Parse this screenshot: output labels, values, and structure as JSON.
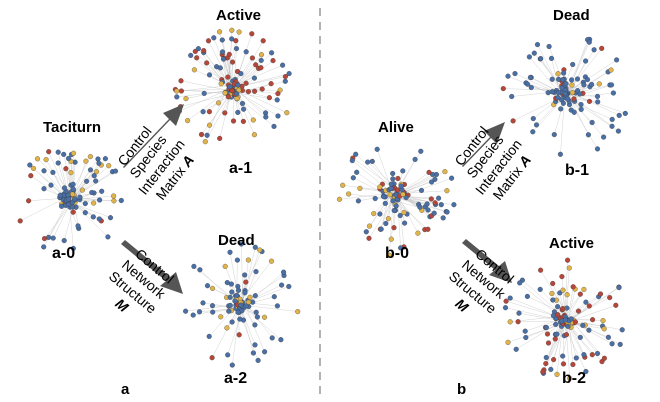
{
  "colors": {
    "node_blue": "#4a6fa5",
    "node_red": "#b5473a",
    "node_yellow": "#e0b44a",
    "edge": "#c8c8c8",
    "arrow": "#555555",
    "divider": "#999999"
  },
  "panel_a": {
    "label": "a",
    "start": {
      "state": "Taciturn",
      "tag": "a-0"
    },
    "top": {
      "state": "Active",
      "tag": "a-1"
    },
    "bottom": {
      "state": "Dead",
      "tag": "a-2"
    },
    "upper_control": {
      "line1": "Control",
      "line2": "Species",
      "line3": "Interaction",
      "line4": "Matrix",
      "symbol": "A"
    },
    "lower_control": {
      "line1": "Control",
      "line2": "Network",
      "line3": "Structure",
      "symbol": "M"
    }
  },
  "panel_b": {
    "label": "b",
    "start": {
      "state": "Alive",
      "tag": "b-0"
    },
    "top": {
      "state": "Dead",
      "tag": "b-1"
    },
    "bottom": {
      "state": "Active",
      "tag": "b-2"
    },
    "upper_control": {
      "line1": "Control",
      "line2": "Species",
      "line3": "Interaction",
      "line4": "Matrix",
      "symbol": "A"
    },
    "lower_control": {
      "line1": "Control",
      "line2": "Network",
      "line3": "Structure",
      "symbol": "M"
    }
  }
}
